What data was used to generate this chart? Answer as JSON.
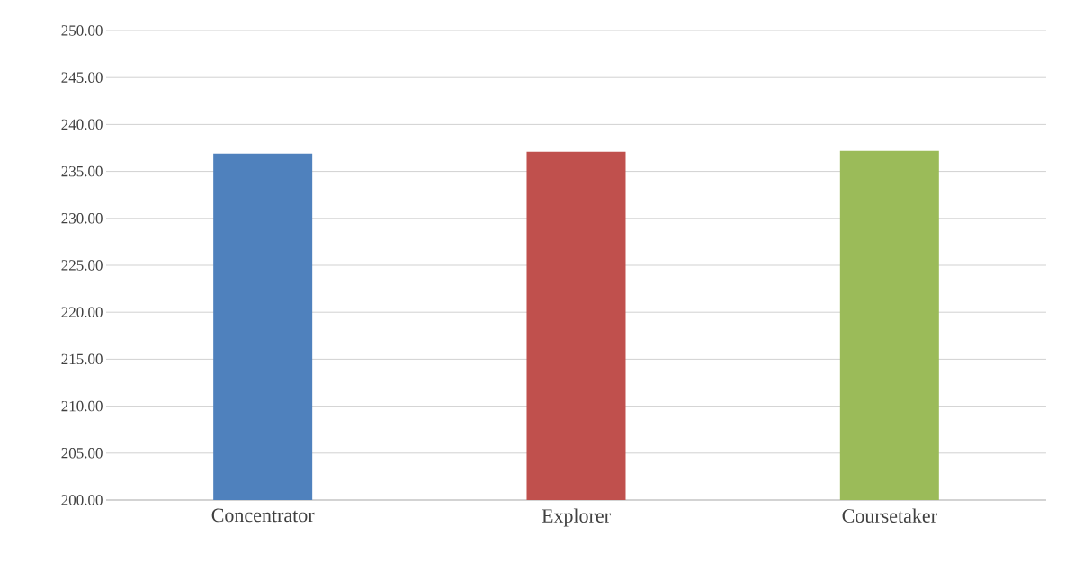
{
  "chart_data": {
    "type": "bar",
    "categories": [
      "Concentrator",
      "Explorer",
      "Coursetaker"
    ],
    "values": [
      236.9,
      237.1,
      237.2
    ],
    "colors": [
      "#4f81bd",
      "#c0504d",
      "#9bbb59"
    ],
    "ylim": [
      200,
      250
    ],
    "yticks": [
      {
        "value": 200,
        "label": "200.00"
      },
      {
        "value": 205,
        "label": "205.00"
      },
      {
        "value": 210,
        "label": "210.00"
      },
      {
        "value": 215,
        "label": "215.00"
      },
      {
        "value": 220,
        "label": "220.00"
      },
      {
        "value": 225,
        "label": "225.00"
      },
      {
        "value": 230,
        "label": "230.00"
      },
      {
        "value": 235,
        "label": "235.00"
      },
      {
        "value": 240,
        "label": "240.00"
      },
      {
        "value": 245,
        "label": "245.00"
      },
      {
        "value": 250,
        "label": "250.00"
      }
    ],
    "grid": "y"
  }
}
